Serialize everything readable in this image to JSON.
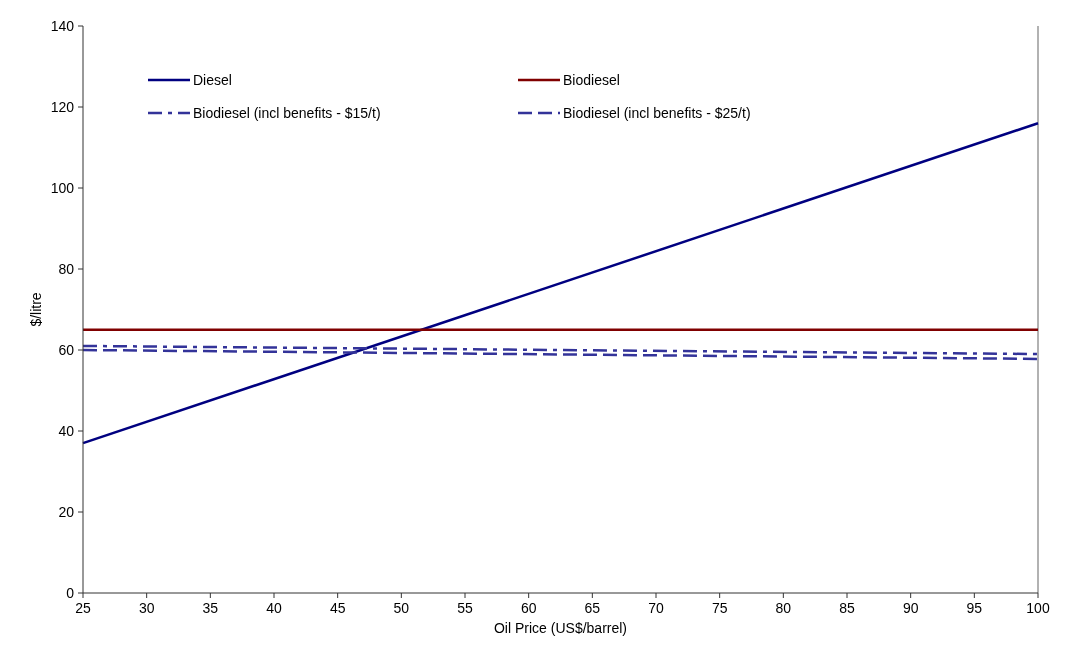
{
  "chart_data": {
    "type": "line",
    "xlabel": "Oil Price (US$/barrel)",
    "ylabel": "$/litre",
    "x": [
      25,
      100
    ],
    "series": [
      {
        "name": "Diesel",
        "color": "#000080",
        "values": [
          37,
          116
        ],
        "line_style": "solid"
      },
      {
        "name": "Biodiesel",
        "color": "#800000",
        "values": [
          65,
          65
        ],
        "line_style": "solid"
      },
      {
        "name": "Biodiesel (incl benefits - $15/t)",
        "color": "#333399",
        "values": [
          61,
          59
        ],
        "line_style": "dashdot"
      },
      {
        "name": "Biodiesel (incl benefits - $25/t)",
        "color": "#333399",
        "values": [
          60,
          57.8
        ],
        "line_style": "dashed"
      }
    ],
    "xlim": [
      25,
      100
    ],
    "xticks": [
      25,
      30,
      35,
      40,
      45,
      50,
      55,
      60,
      65,
      70,
      75,
      80,
      85,
      90,
      95,
      100
    ],
    "ylim": [
      0,
      140
    ],
    "yticks": [
      0,
      20,
      40,
      60,
      80,
      100,
      120,
      140
    ],
    "grid": false,
    "legend": "top",
    "marker": "none"
  }
}
